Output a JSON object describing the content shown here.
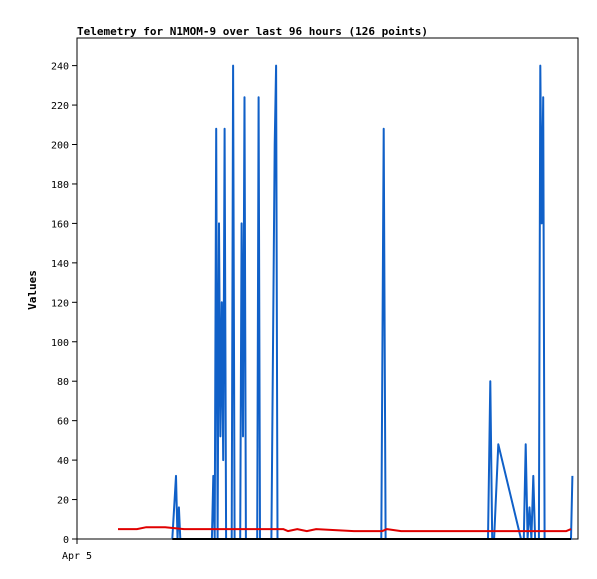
{
  "chart_data": {
    "type": "line",
    "title": "Telemetry for N1MOM-9 over last 96 hours (126 points)",
    "ylabel": "Values",
    "xlabel": "",
    "ylim": [
      0,
      254
    ],
    "xlim": [
      0,
      96
    ],
    "x_tick_labels": [
      {
        "x": 0,
        "label": "Apr 5"
      }
    ],
    "y_ticks": [
      0,
      20,
      40,
      60,
      80,
      100,
      120,
      140,
      160,
      180,
      200,
      220,
      240
    ],
    "grid": false,
    "legend": "none",
    "series": [
      {
        "color": "#1060c8",
        "x": [
          11.5,
          12.3,
          12.6,
          12.9,
          13.2,
          19.9,
          20.2,
          20.5,
          20.8,
          21.1,
          21.4,
          21.7,
          22.0,
          22.3,
          22.6,
          22.9,
          23.2,
          23.5,
          23.8,
          24.1,
          24.4,
          24.7,
          25.0,
          25.3,
          25.6,
          25.9,
          26.2,
          26.5,
          26.8,
          27.1,
          27.4,
          27.7,
          28.0,
          28.3,
          28.6,
          28.9,
          29.2,
          29.5,
          29.8,
          30.1,
          30.4,
          31.0,
          32.5,
          33.2,
          33.5,
          33.8,
          34.4,
          55.8,
          56.3,
          56.7,
          57.3,
          58.0,
          77.4,
          78.4,
          78.9,
          79.3,
          79.7,
          80.6,
          85.4,
          86.0,
          86.4,
          86.8,
          87.2,
          87.6,
          88.0,
          88.4,
          88.8,
          89.2,
          89.5,
          89.8,
          90.1,
          90.4,
          90.7,
          91.0,
          96.0,
          96.3
        ],
        "y": [
          0,
          32,
          0,
          16,
          0,
          0,
          32,
          0,
          208,
          0,
          160,
          52,
          120,
          40,
          208,
          0,
          0,
          0,
          0,
          0,
          240,
          0,
          0,
          0,
          0,
          0,
          160,
          52,
          224,
          0,
          0,
          0,
          0,
          0,
          0,
          0,
          0,
          0,
          224,
          0,
          0,
          0,
          0,
          200,
          240,
          0,
          0,
          0,
          208,
          0,
          0,
          0,
          0,
          0,
          80,
          0,
          0,
          48,
          0,
          0,
          48,
          0,
          16,
          0,
          32,
          0,
          0,
          0,
          240,
          160,
          224,
          0,
          0,
          0,
          0,
          32
        ]
      },
      {
        "color": "#e00000",
        "x": [
          0,
          4,
          6,
          10,
          14,
          20,
          30,
          35,
          36,
          38,
          40,
          42,
          50,
          56,
          57,
          60,
          70,
          80,
          90,
          95,
          96
        ],
        "y": [
          5,
          5,
          6,
          6,
          5,
          5,
          5,
          5,
          4,
          5,
          4,
          5,
          4,
          4,
          5,
          4,
          4,
          4,
          4,
          4,
          5
        ]
      },
      {
        "color": "#000000",
        "x": [
          11.5,
          96
        ],
        "y": [
          0,
          0
        ]
      }
    ]
  }
}
